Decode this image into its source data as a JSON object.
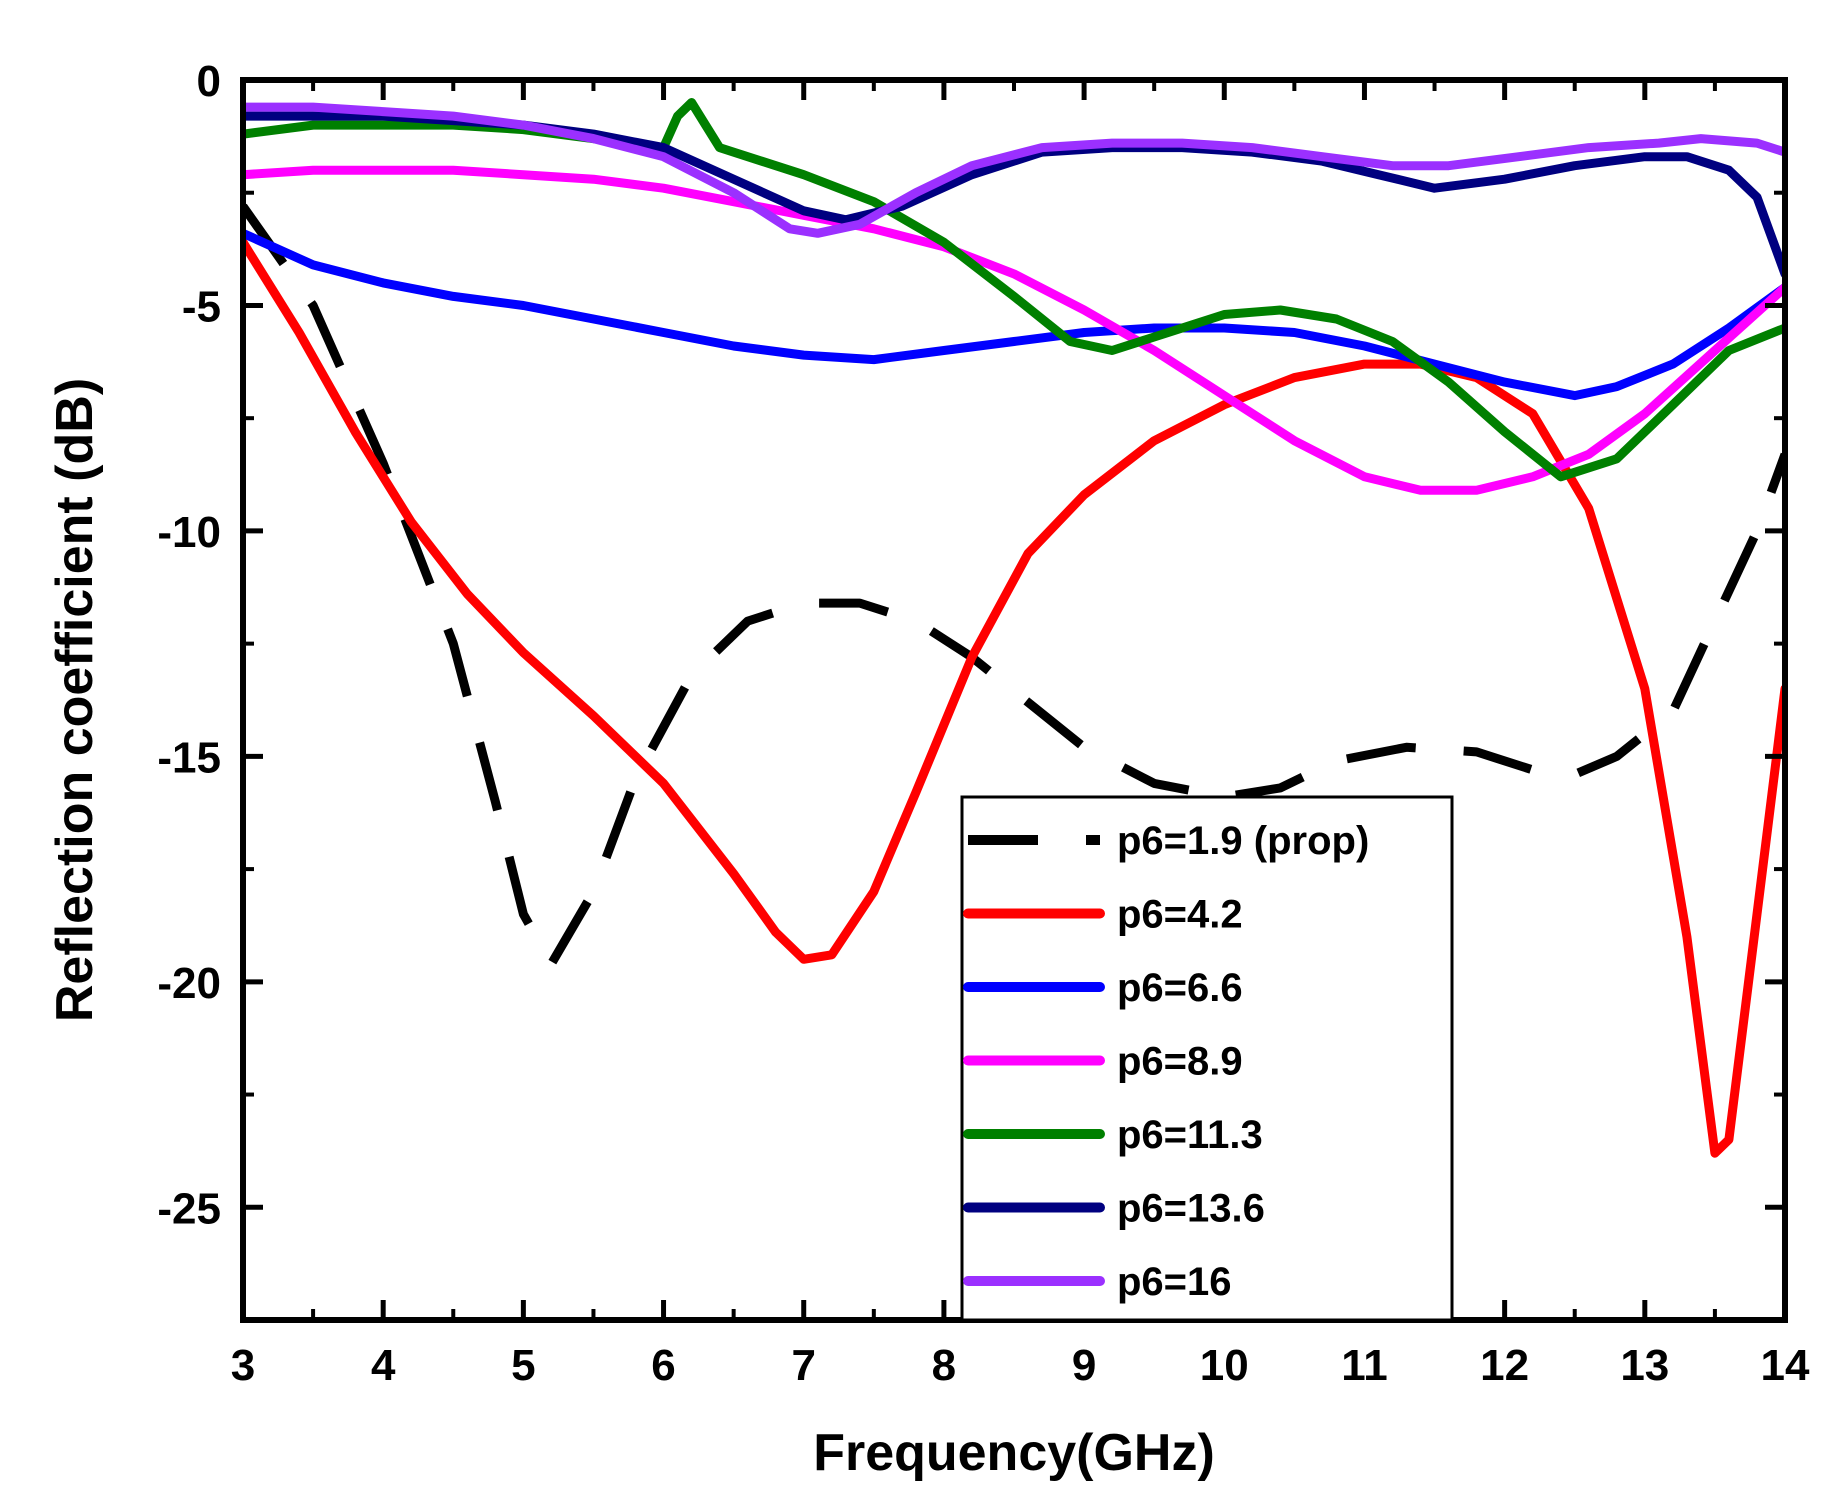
{
  "chart_data": {
    "type": "line",
    "title": "",
    "xlabel": "Frequency(GHz)",
    "ylabel": "Reflection coefficient (dB)",
    "xlim": [
      3,
      14
    ],
    "ylim": [
      -27.5,
      0
    ],
    "x_ticks": [
      3,
      4,
      5,
      6,
      7,
      8,
      9,
      10,
      11,
      12,
      13,
      14
    ],
    "y_ticks": [
      0,
      -5,
      -10,
      -15,
      -20,
      -25
    ],
    "y_tick_labels": [
      "0",
      "-5",
      "-10",
      "-15",
      "-20",
      "-25"
    ],
    "grid": false,
    "legend_position": "bottom-center",
    "series": [
      {
        "name": "p6=1.9 (prop)",
        "color": "#000000",
        "dash": "dashed",
        "points": [
          [
            3.0,
            -2.8
          ],
          [
            3.5,
            -5.0
          ],
          [
            4.0,
            -8.5
          ],
          [
            4.5,
            -12.5
          ],
          [
            4.8,
            -16.0
          ],
          [
            5.0,
            -18.5
          ],
          [
            5.2,
            -19.6
          ],
          [
            5.5,
            -18.0
          ],
          [
            5.8,
            -15.5
          ],
          [
            6.2,
            -13.2
          ],
          [
            6.6,
            -12.0
          ],
          [
            7.0,
            -11.6
          ],
          [
            7.4,
            -11.6
          ],
          [
            7.8,
            -12.0
          ],
          [
            8.2,
            -12.8
          ],
          [
            8.6,
            -13.8
          ],
          [
            9.0,
            -14.8
          ],
          [
            9.5,
            -15.6
          ],
          [
            10.0,
            -15.9
          ],
          [
            10.4,
            -15.7
          ],
          [
            10.8,
            -15.1
          ],
          [
            11.3,
            -14.8
          ],
          [
            11.8,
            -14.9
          ],
          [
            12.2,
            -15.3
          ],
          [
            12.5,
            -15.4
          ],
          [
            12.8,
            -15.0
          ],
          [
            13.2,
            -14.0
          ],
          [
            13.5,
            -12.0
          ],
          [
            13.8,
            -10.0
          ],
          [
            14.0,
            -8.3
          ]
        ]
      },
      {
        "name": "p6=4.2",
        "color": "#ff0000",
        "dash": "solid",
        "points": [
          [
            3.0,
            -3.6
          ],
          [
            3.4,
            -5.6
          ],
          [
            3.8,
            -7.8
          ],
          [
            4.2,
            -9.8
          ],
          [
            4.6,
            -11.4
          ],
          [
            5.0,
            -12.7
          ],
          [
            5.5,
            -14.1
          ],
          [
            6.0,
            -15.6
          ],
          [
            6.5,
            -17.6
          ],
          [
            6.8,
            -18.9
          ],
          [
            7.0,
            -19.5
          ],
          [
            7.2,
            -19.4
          ],
          [
            7.5,
            -18.0
          ],
          [
            7.8,
            -15.8
          ],
          [
            8.2,
            -12.8
          ],
          [
            8.6,
            -10.5
          ],
          [
            9.0,
            -9.2
          ],
          [
            9.5,
            -8.0
          ],
          [
            10.0,
            -7.2
          ],
          [
            10.5,
            -6.6
          ],
          [
            11.0,
            -6.3
          ],
          [
            11.4,
            -6.3
          ],
          [
            11.8,
            -6.6
          ],
          [
            12.2,
            -7.4
          ],
          [
            12.6,
            -9.5
          ],
          [
            13.0,
            -13.5
          ],
          [
            13.3,
            -19.0
          ],
          [
            13.5,
            -23.8
          ],
          [
            13.6,
            -23.5
          ],
          [
            13.8,
            -18.5
          ],
          [
            14.0,
            -13.5
          ]
        ]
      },
      {
        "name": "p6=6.6",
        "color": "#0000ff",
        "dash": "solid",
        "points": [
          [
            3.0,
            -3.4
          ],
          [
            3.5,
            -4.1
          ],
          [
            4.0,
            -4.5
          ],
          [
            4.5,
            -4.8
          ],
          [
            5.0,
            -5.0
          ],
          [
            5.5,
            -5.3
          ],
          [
            6.0,
            -5.6
          ],
          [
            6.5,
            -5.9
          ],
          [
            7.0,
            -6.1
          ],
          [
            7.5,
            -6.2
          ],
          [
            8.0,
            -6.0
          ],
          [
            8.5,
            -5.8
          ],
          [
            9.0,
            -5.6
          ],
          [
            9.5,
            -5.5
          ],
          [
            10.0,
            -5.5
          ],
          [
            10.5,
            -5.6
          ],
          [
            11.0,
            -5.9
          ],
          [
            11.5,
            -6.3
          ],
          [
            12.0,
            -6.7
          ],
          [
            12.5,
            -7.0
          ],
          [
            12.8,
            -6.8
          ],
          [
            13.2,
            -6.3
          ],
          [
            13.6,
            -5.5
          ],
          [
            14.0,
            -4.6
          ]
        ]
      },
      {
        "name": "p6=8.9",
        "color": "#ff00ff",
        "dash": "solid",
        "points": [
          [
            3.0,
            -2.1
          ],
          [
            3.5,
            -2.0
          ],
          [
            4.0,
            -2.0
          ],
          [
            4.5,
            -2.0
          ],
          [
            5.0,
            -2.1
          ],
          [
            5.5,
            -2.2
          ],
          [
            6.0,
            -2.4
          ],
          [
            6.5,
            -2.7
          ],
          [
            7.0,
            -3.0
          ],
          [
            7.5,
            -3.3
          ],
          [
            8.0,
            -3.7
          ],
          [
            8.5,
            -4.3
          ],
          [
            9.0,
            -5.1
          ],
          [
            9.5,
            -6.0
          ],
          [
            10.0,
            -7.0
          ],
          [
            10.5,
            -8.0
          ],
          [
            11.0,
            -8.8
          ],
          [
            11.4,
            -9.1
          ],
          [
            11.8,
            -9.1
          ],
          [
            12.2,
            -8.8
          ],
          [
            12.6,
            -8.3
          ],
          [
            13.0,
            -7.4
          ],
          [
            13.5,
            -6.0
          ],
          [
            14.0,
            -4.6
          ]
        ]
      },
      {
        "name": "p6=11.3",
        "color": "#008000",
        "dash": "solid",
        "points": [
          [
            3.0,
            -1.2
          ],
          [
            3.5,
            -1.0
          ],
          [
            4.0,
            -1.0
          ],
          [
            4.5,
            -1.0
          ],
          [
            5.0,
            -1.1
          ],
          [
            5.5,
            -1.3
          ],
          [
            6.0,
            -1.5
          ],
          [
            6.1,
            -0.8
          ],
          [
            6.2,
            -0.5
          ],
          [
            6.3,
            -1.0
          ],
          [
            6.4,
            -1.5
          ],
          [
            7.0,
            -2.1
          ],
          [
            7.5,
            -2.7
          ],
          [
            8.0,
            -3.6
          ],
          [
            8.5,
            -4.8
          ],
          [
            8.9,
            -5.8
          ],
          [
            9.2,
            -6.0
          ],
          [
            9.6,
            -5.6
          ],
          [
            10.0,
            -5.2
          ],
          [
            10.4,
            -5.1
          ],
          [
            10.8,
            -5.3
          ],
          [
            11.2,
            -5.8
          ],
          [
            11.6,
            -6.7
          ],
          [
            12.0,
            -7.8
          ],
          [
            12.4,
            -8.8
          ],
          [
            12.8,
            -8.4
          ],
          [
            13.2,
            -7.2
          ],
          [
            13.6,
            -6.0
          ],
          [
            14.0,
            -5.5
          ]
        ]
      },
      {
        "name": "p6=13.6",
        "color": "#000080",
        "dash": "solid",
        "points": [
          [
            3.0,
            -0.8
          ],
          [
            3.5,
            -0.8
          ],
          [
            4.0,
            -0.8
          ],
          [
            4.5,
            -0.9
          ],
          [
            5.0,
            -1.0
          ],
          [
            5.5,
            -1.2
          ],
          [
            6.0,
            -1.5
          ],
          [
            6.5,
            -2.2
          ],
          [
            7.0,
            -2.9
          ],
          [
            7.3,
            -3.1
          ],
          [
            7.7,
            -2.8
          ],
          [
            8.2,
            -2.1
          ],
          [
            8.7,
            -1.6
          ],
          [
            9.2,
            -1.5
          ],
          [
            9.7,
            -1.5
          ],
          [
            10.2,
            -1.6
          ],
          [
            10.7,
            -1.8
          ],
          [
            11.1,
            -2.1
          ],
          [
            11.5,
            -2.4
          ],
          [
            12.0,
            -2.2
          ],
          [
            12.5,
            -1.9
          ],
          [
            13.0,
            -1.7
          ],
          [
            13.3,
            -1.7
          ],
          [
            13.6,
            -2.0
          ],
          [
            13.8,
            -2.6
          ],
          [
            14.0,
            -4.3
          ]
        ]
      },
      {
        "name": "p6=16",
        "color": "#9b30ff",
        "dash": "solid",
        "points": [
          [
            3.0,
            -0.6
          ],
          [
            3.5,
            -0.6
          ],
          [
            4.0,
            -0.7
          ],
          [
            4.5,
            -0.8
          ],
          [
            5.0,
            -1.0
          ],
          [
            5.5,
            -1.3
          ],
          [
            6.0,
            -1.7
          ],
          [
            6.5,
            -2.5
          ],
          [
            6.9,
            -3.3
          ],
          [
            7.1,
            -3.4
          ],
          [
            7.4,
            -3.2
          ],
          [
            7.8,
            -2.5
          ],
          [
            8.2,
            -1.9
          ],
          [
            8.7,
            -1.5
          ],
          [
            9.2,
            -1.4
          ],
          [
            9.7,
            -1.4
          ],
          [
            10.2,
            -1.5
          ],
          [
            10.7,
            -1.7
          ],
          [
            11.2,
            -1.9
          ],
          [
            11.6,
            -1.9
          ],
          [
            12.1,
            -1.7
          ],
          [
            12.6,
            -1.5
          ],
          [
            13.1,
            -1.4
          ],
          [
            13.4,
            -1.3
          ],
          [
            13.8,
            -1.4
          ],
          [
            14.0,
            -1.6
          ]
        ]
      }
    ]
  }
}
